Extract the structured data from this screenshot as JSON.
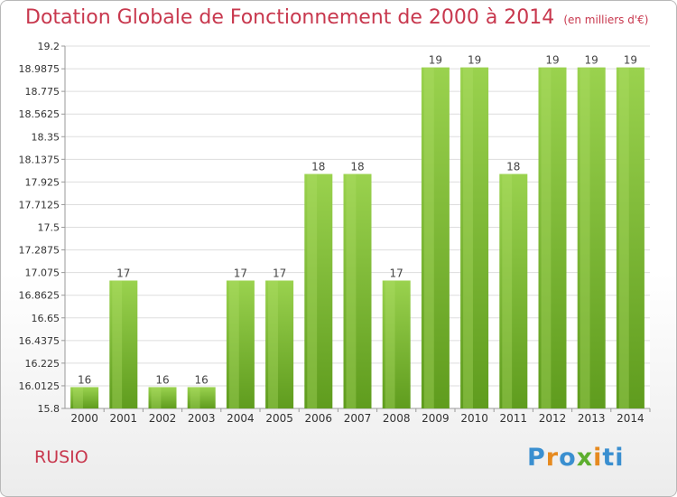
{
  "chart_data": {
    "type": "bar",
    "title": "Dotation Globale de Fonctionnement de 2000 à 2014",
    "subtitle": "(en milliers d'€)",
    "categories": [
      "2000",
      "2001",
      "2002",
      "2003",
      "2004",
      "2005",
      "2006",
      "2007",
      "2008",
      "2009",
      "2010",
      "2011",
      "2012",
      "2013",
      "2014"
    ],
    "values": [
      16,
      17,
      16,
      16,
      17,
      17,
      18,
      18,
      17,
      19,
      19,
      18,
      19,
      19,
      19
    ],
    "data_labels": [
      "16",
      "17",
      "16",
      "16",
      "17",
      "17",
      "18",
      "18",
      "17",
      "19",
      "19",
      "18",
      "19",
      "19",
      "19"
    ],
    "ylim": [
      15.8,
      19.2
    ],
    "yticks": [
      15.8,
      16.0125,
      16.225,
      16.4375,
      16.65,
      16.8625,
      17.075,
      17.2875,
      17.5,
      17.7125,
      17.925,
      18.1375,
      18.35,
      18.5625,
      18.775,
      18.9875,
      19.2
    ],
    "ytick_labels": [
      "15.8",
      "16.0125",
      "16.225",
      "16.4375",
      "16.65",
      "16.8625",
      "17.075",
      "17.2875",
      "17.5",
      "17.7125",
      "17.925",
      "18.1375",
      "18.35",
      "18.5625",
      "18.775",
      "18.9875",
      "19.2"
    ],
    "grid": true,
    "bar_color": "#7fc23a",
    "bar_color_light": "#a6dc5a",
    "bar_color_dark": "#5c9a1c"
  },
  "commune": "RUSIO",
  "logo": {
    "letters": [
      "P",
      "r",
      "o",
      "x",
      "i",
      "ti"
    ]
  },
  "colors": {
    "title": "#c8384e",
    "grid": "#dddddd",
    "axis": "#999999"
  }
}
